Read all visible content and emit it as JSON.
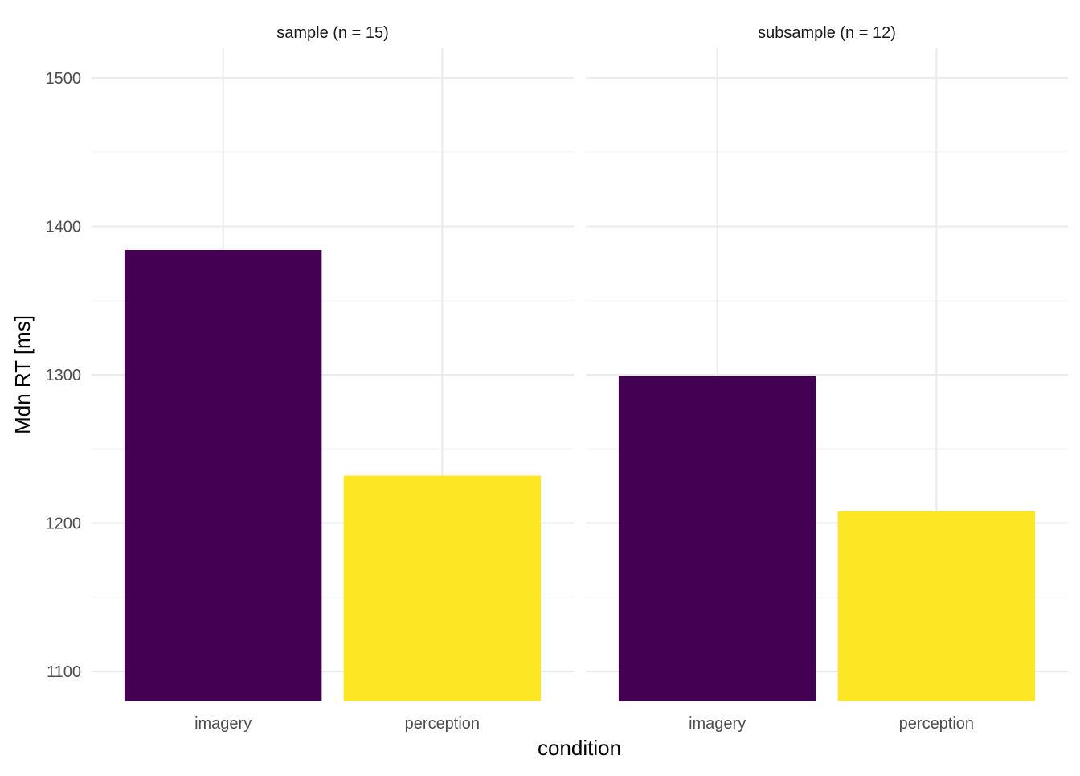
{
  "chart_data": {
    "type": "bar",
    "xlabel": "condition",
    "ylabel": "Mdn RT [ms]",
    "ylim": [
      1080,
      1520
    ],
    "yticks": [
      1100,
      1200,
      1300,
      1400,
      1500
    ],
    "categories": [
      "imagery",
      "perception"
    ],
    "grid": "on",
    "legend": "none",
    "colors": {
      "imagery": "#440154",
      "perception": "#FDE725"
    },
    "panels": [
      {
        "label": "sample (n = 15)",
        "values": [
          1384,
          1232
        ]
      },
      {
        "label": "subsample (n = 12)",
        "values": [
          1299,
          1208
        ]
      }
    ]
  }
}
